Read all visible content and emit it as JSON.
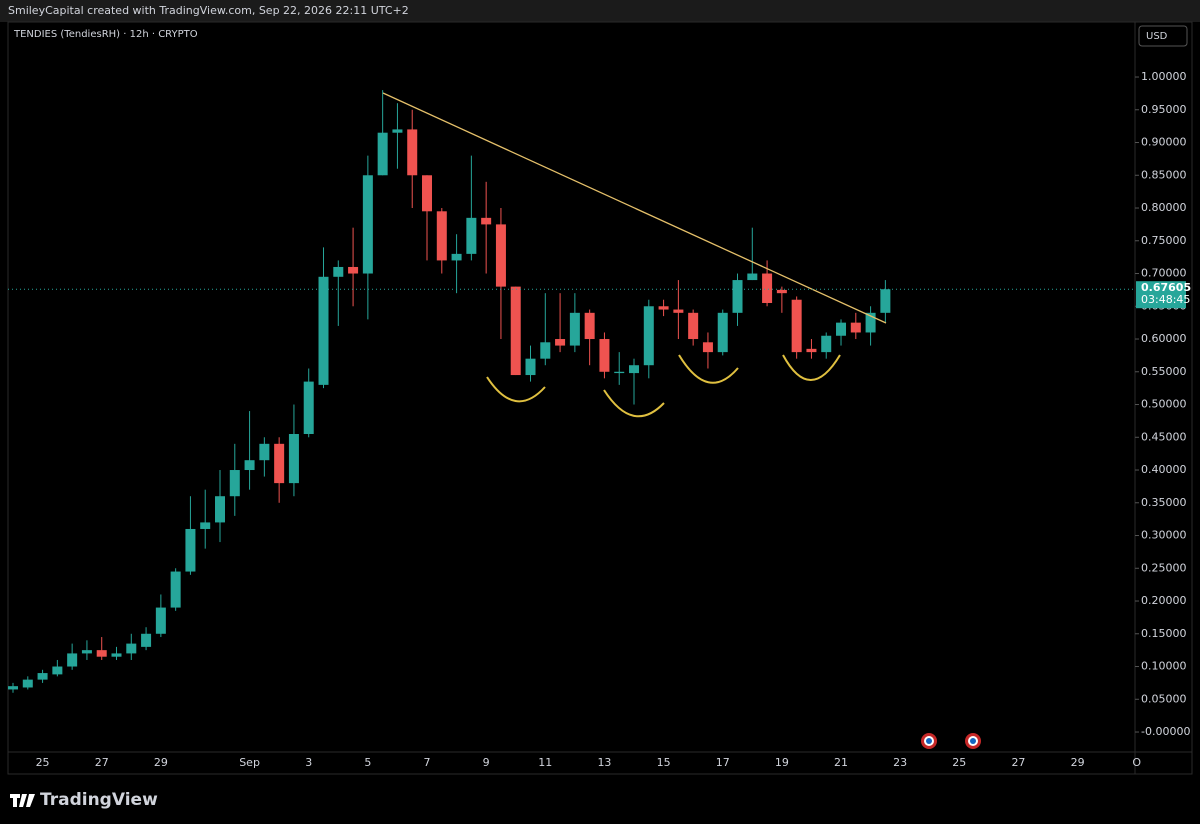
{
  "header": {
    "attribution": "SmileyCapital created with TradingView.com, Sep 22, 2026 22:11 UTC+2"
  },
  "footer": {
    "brand": "TradingView"
  },
  "chart_data": {
    "type": "candlestick",
    "title": "TENDIES (TendiesRH) · 12h · CRYPTO",
    "currency": "USD",
    "up_color": "#26a69a",
    "down_color": "#ef5350",
    "last_price": 0.67605,
    "countdown": "03:48:45",
    "categories": [
      null,
      null,
      "25",
      null,
      null,
      null,
      "27",
      null,
      null,
      null,
      "29",
      null,
      null,
      null,
      null,
      null,
      "Sep",
      null,
      null,
      null,
      "3",
      null,
      null,
      null,
      "5",
      null,
      null,
      null,
      "7",
      null,
      null,
      null,
      "9",
      null,
      null,
      null,
      "11",
      null,
      null,
      null,
      "13",
      null,
      null,
      null,
      "15",
      null,
      null,
      null,
      "17",
      null,
      null,
      null,
      "19",
      null,
      null,
      null,
      "21",
      null,
      null,
      null,
      "23",
      null,
      null,
      null,
      "25",
      null,
      null,
      null,
      "27",
      null,
      null,
      null,
      "29",
      null,
      null,
      null,
      "O"
    ],
    "open": [
      0.065,
      0.068,
      0.08,
      0.088,
      0.1,
      0.12,
      0.125,
      0.115,
      0.12,
      0.13,
      0.15,
      0.19,
      0.245,
      0.31,
      0.32,
      0.36,
      0.4,
      0.415,
      0.44,
      0.38,
      0.455,
      0.53,
      0.695,
      0.71,
      0.7,
      0.85,
      0.915,
      0.92,
      0.85,
      0.795,
      0.72,
      0.73,
      0.785,
      0.775,
      0.68,
      0.545,
      0.57,
      0.6,
      0.59,
      0.64,
      0.6,
      0.548,
      0.548,
      0.56,
      0.65,
      0.645,
      0.64,
      0.595,
      0.58,
      0.64,
      0.69,
      0.7,
      0.675,
      0.66,
      0.585,
      0.58,
      0.605,
      0.625,
      0.61,
      0.64,
      null,
      null,
      null,
      null,
      null,
      null,
      null,
      null,
      null,
      null,
      null,
      null,
      null,
      null,
      null,
      null,
      null
    ],
    "high": [
      0.075,
      0.085,
      0.095,
      0.11,
      0.135,
      0.14,
      0.145,
      0.13,
      0.15,
      0.16,
      0.21,
      0.25,
      0.36,
      0.37,
      0.4,
      0.44,
      0.49,
      0.45,
      0.45,
      0.5,
      0.555,
      0.74,
      0.72,
      0.77,
      0.88,
      0.98,
      0.96,
      0.95,
      0.85,
      0.8,
      0.76,
      0.88,
      0.84,
      0.8,
      0.68,
      0.59,
      0.67,
      0.67,
      0.67,
      0.645,
      0.61,
      0.58,
      0.57,
      0.66,
      0.66,
      0.69,
      0.645,
      0.61,
      0.645,
      0.7,
      0.77,
      0.72,
      0.68,
      0.665,
      0.6,
      0.61,
      0.63,
      0.64,
      0.65,
      0.69,
      null,
      null,
      null,
      null,
      null,
      null,
      null,
      null,
      null,
      null,
      null,
      null,
      null,
      null,
      null,
      null,
      null
    ],
    "low": [
      0.06,
      0.065,
      0.075,
      0.085,
      0.095,
      0.11,
      0.11,
      0.11,
      0.11,
      0.125,
      0.145,
      0.185,
      0.24,
      0.28,
      0.29,
      0.33,
      0.37,
      0.39,
      0.35,
      0.36,
      0.45,
      0.525,
      0.62,
      0.65,
      0.63,
      0.85,
      0.86,
      0.8,
      0.72,
      0.7,
      0.67,
      0.72,
      0.7,
      0.6,
      0.545,
      0.535,
      0.56,
      0.58,
      0.58,
      0.56,
      0.54,
      0.53,
      0.5,
      0.54,
      0.635,
      0.6,
      0.59,
      0.555,
      0.575,
      0.62,
      0.69,
      0.65,
      0.64,
      0.57,
      0.57,
      0.57,
      0.59,
      0.6,
      0.59,
      0.625,
      null,
      null,
      null,
      null,
      null,
      null,
      null,
      null,
      null,
      null,
      null,
      null,
      null,
      null,
      null,
      null,
      null
    ],
    "close": [
      0.07,
      0.08,
      0.09,
      0.1,
      0.12,
      0.125,
      0.115,
      0.12,
      0.135,
      0.15,
      0.19,
      0.245,
      0.31,
      0.32,
      0.36,
      0.4,
      0.415,
      0.44,
      0.38,
      0.455,
      0.535,
      0.695,
      0.71,
      0.7,
      0.85,
      0.915,
      0.92,
      0.85,
      0.795,
      0.72,
      0.73,
      0.785,
      0.775,
      0.68,
      0.545,
      0.57,
      0.595,
      0.59,
      0.64,
      0.6,
      0.55,
      0.55,
      0.56,
      0.65,
      0.645,
      0.64,
      0.6,
      0.58,
      0.64,
      0.69,
      0.7,
      0.655,
      0.67,
      0.58,
      0.58,
      0.605,
      0.625,
      0.61,
      0.64,
      0.67605,
      null,
      null,
      null,
      null,
      null,
      null,
      null,
      null,
      null,
      null,
      null,
      null,
      null,
      null,
      null,
      null,
      null
    ],
    "ylim": [
      -0.0305,
      1.084
    ],
    "yticks": [
      {
        "value": 0,
        "label": "-0.00000"
      },
      {
        "value": 0.05,
        "label": "0.05000"
      },
      {
        "value": 0.1,
        "label": "0.10000"
      },
      {
        "value": 0.15,
        "label": "0.15000"
      },
      {
        "value": 0.2,
        "label": "0.20000"
      },
      {
        "value": 0.25,
        "label": "0.25000"
      },
      {
        "value": 0.3,
        "label": "0.30000"
      },
      {
        "value": 0.35,
        "label": "0.35000"
      },
      {
        "value": 0.4,
        "label": "0.40000"
      },
      {
        "value": 0.45,
        "label": "0.45000"
      },
      {
        "value": 0.5,
        "label": "0.50000"
      },
      {
        "value": 0.55,
        "label": "0.55000"
      },
      {
        "value": 0.6,
        "label": "0.60000"
      },
      {
        "value": 0.65,
        "label": "0.65000"
      },
      {
        "value": 0.7,
        "label": "0.70000"
      },
      {
        "value": 0.75,
        "label": "0.75000"
      },
      {
        "value": 0.8,
        "label": "0.80000"
      },
      {
        "value": 0.85,
        "label": "0.85000"
      },
      {
        "value": 0.9,
        "label": "0.90000"
      },
      {
        "value": 0.95,
        "label": "0.95000"
      },
      {
        "value": 1,
        "label": "1.00000"
      }
    ]
  }
}
